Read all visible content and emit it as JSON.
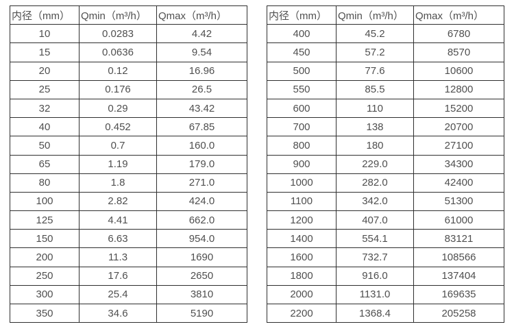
{
  "page": {
    "background": "#ffffff",
    "text_color": "#4f4f4f",
    "border_color": "#2e2e2e"
  },
  "chart_data": [
    {
      "type": "table",
      "title": "",
      "columns": [
        "内径（mm）",
        "Qmin（m³/h）",
        "Qmax（m³/h）"
      ],
      "rows": [
        [
          "10",
          "0.0283",
          "4.42"
        ],
        [
          "15",
          "0.0636",
          "9.54"
        ],
        [
          "20",
          "0.12",
          "16.96"
        ],
        [
          "25",
          "0.176",
          "26.5"
        ],
        [
          "32",
          "0.29",
          "43.42"
        ],
        [
          "40",
          "0.452",
          "67.85"
        ],
        [
          "50",
          "0.7",
          "160.0"
        ],
        [
          "65",
          "1.19",
          "179.0"
        ],
        [
          "80",
          "1.8",
          "271.0"
        ],
        [
          "100",
          "2.82",
          "424.0"
        ],
        [
          "125",
          "4.41",
          "662.0"
        ],
        [
          "150",
          "6.63",
          "954.0"
        ],
        [
          "200",
          "11.3",
          "1690"
        ],
        [
          "250",
          "17.6",
          "2650"
        ],
        [
          "300",
          "25.4",
          "3810"
        ],
        [
          "350",
          "34.6",
          "5190"
        ]
      ]
    },
    {
      "type": "table",
      "title": "",
      "columns": [
        "内径（mm）",
        "Qmin（m³/h）",
        "Qmax（m³/h）"
      ],
      "rows": [
        [
          "400",
          "45.2",
          "6780"
        ],
        [
          "450",
          "57.2",
          "8570"
        ],
        [
          "500",
          "77.6",
          "10600"
        ],
        [
          "550",
          "85.5",
          "12800"
        ],
        [
          "600",
          "110",
          "15200"
        ],
        [
          "700",
          "138",
          "20700"
        ],
        [
          "800",
          "180",
          "27100"
        ],
        [
          "900",
          "229.0",
          "34300"
        ],
        [
          "1000",
          "282.0",
          "42400"
        ],
        [
          "1100",
          "342.0",
          "51300"
        ],
        [
          "1200",
          "407.0",
          "61000"
        ],
        [
          "1400",
          "554.1",
          "83121"
        ],
        [
          "1600",
          "732.7",
          "108566"
        ],
        [
          "1800",
          "916.0",
          "137404"
        ],
        [
          "2000",
          "1131.0",
          "169635"
        ],
        [
          "2200",
          "1368.4",
          "205258"
        ]
      ]
    }
  ]
}
